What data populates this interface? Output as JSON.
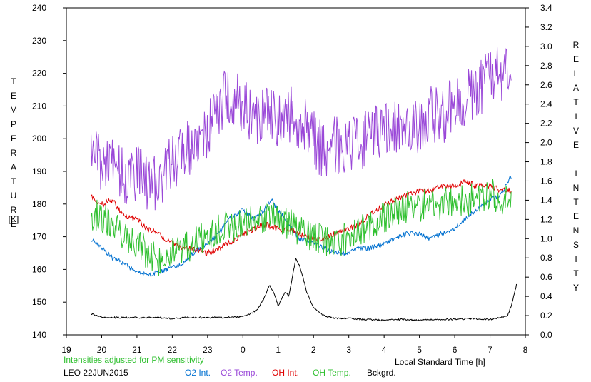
{
  "chart_data": {
    "type": "line",
    "xlabel": "Local Standard Time [h]",
    "ylabel_left": "TEMPERATURE",
    "ylabel_left_unit": "[K]",
    "ylabel_right": "RELATIVE INTENSITY",
    "xlim": [
      19,
      32
    ],
    "ylim_left": [
      140,
      240
    ],
    "ylim_right": [
      0.0,
      3.4
    ],
    "x_ticks": [
      19,
      20,
      21,
      22,
      23,
      24,
      25,
      26,
      27,
      28,
      29,
      30,
      31,
      32
    ],
    "x_tick_labels": [
      "19",
      "20",
      "21",
      "22",
      "23",
      "0",
      "1",
      "2",
      "3",
      "4",
      "5",
      "6",
      "7",
      "8"
    ],
    "y_left_ticks": [
      "140",
      "150",
      "160",
      "170",
      "180",
      "190",
      "200",
      "210",
      "220",
      "230",
      "240"
    ],
    "y_right_ticks": [
      "0.0",
      "0.2",
      "0.4",
      "0.6",
      "0.8",
      "1.0",
      "1.2",
      "1.4",
      "1.6",
      "1.8",
      "2.0",
      "2.2",
      "2.4",
      "2.6",
      "2.8",
      "3.0",
      "3.2",
      "3.4"
    ],
    "grid": false,
    "series": [
      {
        "name": "O2 Int.",
        "axis": "right",
        "color": "#0070d0",
        "x": [
          19.7,
          20.0,
          20.3,
          20.6,
          21.0,
          21.3,
          21.6,
          22.0,
          22.3,
          22.6,
          23.0,
          23.3,
          23.6,
          24.0,
          24.3,
          24.6,
          24.8,
          25.0,
          25.3,
          25.6,
          26.0,
          26.3,
          26.6,
          27.0,
          27.3,
          27.6,
          28.0,
          28.3,
          28.6,
          29.0,
          29.3,
          29.6,
          30.0,
          30.3,
          30.6,
          31.0,
          31.3,
          31.6
        ],
        "y": [
          1.0,
          0.9,
          0.8,
          0.75,
          0.65,
          0.62,
          0.65,
          0.7,
          0.75,
          0.85,
          0.95,
          1.05,
          1.2,
          1.3,
          1.2,
          1.3,
          1.4,
          1.3,
          1.15,
          1.0,
          0.95,
          0.9,
          0.85,
          0.85,
          0.9,
          0.9,
          0.95,
          1.0,
          1.05,
          1.05,
          1.0,
          1.05,
          1.1,
          1.2,
          1.3,
          1.4,
          1.45,
          1.65
        ]
      },
      {
        "name": "O2 Temp.",
        "axis": "left",
        "color": "#9a48d8",
        "x": [
          19.7,
          20.0,
          20.3,
          20.6,
          21.0,
          21.3,
          21.6,
          22.0,
          22.3,
          22.6,
          23.0,
          23.3,
          23.6,
          24.0,
          24.3,
          24.6,
          25.0,
          25.3,
          25.6,
          26.0,
          26.3,
          26.6,
          27.0,
          27.3,
          27.6,
          28.0,
          28.3,
          28.6,
          29.0,
          29.3,
          29.6,
          30.0,
          30.3,
          30.6,
          31.0,
          31.3,
          31.6
        ],
        "y": [
          195,
          192,
          196,
          188,
          190,
          185,
          188,
          192,
          195,
          198,
          203,
          210,
          213,
          210,
          207,
          208,
          205,
          208,
          206,
          200,
          196,
          198,
          198,
          198,
          202,
          202,
          204,
          202,
          205,
          208,
          207,
          210,
          212,
          215,
          218,
          220,
          221
        ]
      },
      {
        "name": "OH Int.",
        "axis": "right",
        "color": "#e00000",
        "x": [
          19.7,
          20.0,
          20.3,
          20.6,
          21.0,
          21.3,
          21.6,
          22.0,
          22.3,
          22.6,
          23.0,
          23.3,
          23.6,
          24.0,
          24.3,
          24.6,
          25.0,
          25.3,
          25.6,
          26.0,
          26.3,
          26.6,
          27.0,
          27.3,
          27.6,
          28.0,
          28.3,
          28.6,
          29.0,
          29.3,
          29.6,
          30.0,
          30.3,
          30.6,
          31.0,
          31.3,
          31.6
        ],
        "y": [
          1.45,
          1.35,
          1.4,
          1.25,
          1.2,
          1.1,
          1.05,
          0.95,
          0.9,
          0.9,
          0.85,
          0.9,
          0.95,
          1.05,
          1.1,
          1.15,
          1.1,
          1.1,
          1.05,
          1.0,
          1.0,
          1.05,
          1.1,
          1.15,
          1.25,
          1.35,
          1.4,
          1.45,
          1.5,
          1.5,
          1.55,
          1.55,
          1.6,
          1.55,
          1.55,
          1.5,
          1.5
        ]
      },
      {
        "name": "OH Temp.",
        "axis": "left",
        "color": "#30c030",
        "x": [
          19.7,
          20.0,
          20.3,
          20.6,
          21.0,
          21.3,
          21.6,
          22.0,
          22.3,
          22.6,
          23.0,
          23.3,
          23.6,
          24.0,
          24.3,
          24.6,
          25.0,
          25.3,
          25.6,
          26.0,
          26.3,
          26.6,
          27.0,
          27.3,
          27.6,
          28.0,
          28.3,
          28.6,
          29.0,
          29.3,
          29.6,
          30.0,
          30.3,
          30.6,
          31.0,
          31.3,
          31.6
        ],
        "y": [
          177,
          176,
          174,
          170,
          168,
          165,
          163,
          165,
          166,
          168,
          170,
          172,
          173,
          174,
          175,
          176,
          175,
          174,
          172,
          170,
          169,
          168,
          170,
          172,
          173,
          176,
          178,
          179,
          179,
          180,
          180,
          181,
          181,
          182,
          183,
          182,
          181
        ]
      },
      {
        "name": "Bckgrd.",
        "axis": "right",
        "color": "#000000",
        "x": [
          19.7,
          20.0,
          20.5,
          21.0,
          21.5,
          22.0,
          22.5,
          23.0,
          23.5,
          24.0,
          24.2,
          24.4,
          24.6,
          24.75,
          24.9,
          25.0,
          25.2,
          25.3,
          25.4,
          25.5,
          25.6,
          25.7,
          25.8,
          26.0,
          26.3,
          26.6,
          27.0,
          27.5,
          28.0,
          28.5,
          29.0,
          29.5,
          30.0,
          30.5,
          31.0,
          31.5,
          31.6,
          31.75
        ],
        "y": [
          0.22,
          0.18,
          0.18,
          0.18,
          0.18,
          0.17,
          0.18,
          0.18,
          0.18,
          0.19,
          0.22,
          0.26,
          0.38,
          0.52,
          0.42,
          0.3,
          0.45,
          0.4,
          0.6,
          0.8,
          0.72,
          0.6,
          0.45,
          0.28,
          0.2,
          0.17,
          0.17,
          0.16,
          0.15,
          0.16,
          0.15,
          0.16,
          0.16,
          0.17,
          0.16,
          0.2,
          0.3,
          0.52
        ]
      }
    ],
    "annotations": [
      "Intensities adjusted for PM sensitivity",
      "LEO 22JUN2015"
    ]
  }
}
